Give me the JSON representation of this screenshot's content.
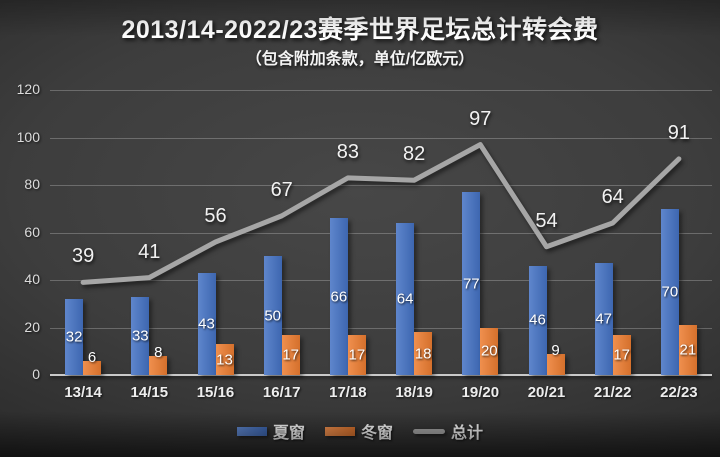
{
  "chart_data": {
    "type": "combo-bar-line",
    "title": "2013/14-2022/23赛季世界足坛总计转会费",
    "subtitle": "（包含附加条款，单位/亿欧元）",
    "categories": [
      "13/14",
      "14/15",
      "15/16",
      "16/17",
      "17/18",
      "18/19",
      "19/20",
      "20/21",
      "21/22",
      "22/23"
    ],
    "series": [
      {
        "name": "夏窗",
        "type": "bar",
        "color": "#4472C4",
        "values": [
          32,
          33,
          43,
          50,
          66,
          64,
          77,
          46,
          47,
          70
        ]
      },
      {
        "name": "冬窗",
        "type": "bar",
        "color": "#ED7D31",
        "values": [
          6,
          8,
          13,
          17,
          17,
          18,
          20,
          9,
          17,
          21
        ]
      },
      {
        "name": "总计",
        "type": "line",
        "color": "#A6A6A6",
        "values": [
          39,
          41,
          56,
          67,
          83,
          82,
          97,
          54,
          64,
          91
        ]
      }
    ],
    "ylim": [
      0,
      120
    ],
    "yticks": [
      0,
      20,
      40,
      60,
      80,
      100,
      120
    ],
    "grid": true,
    "data_labels": true,
    "legend_position": "bottom"
  }
}
